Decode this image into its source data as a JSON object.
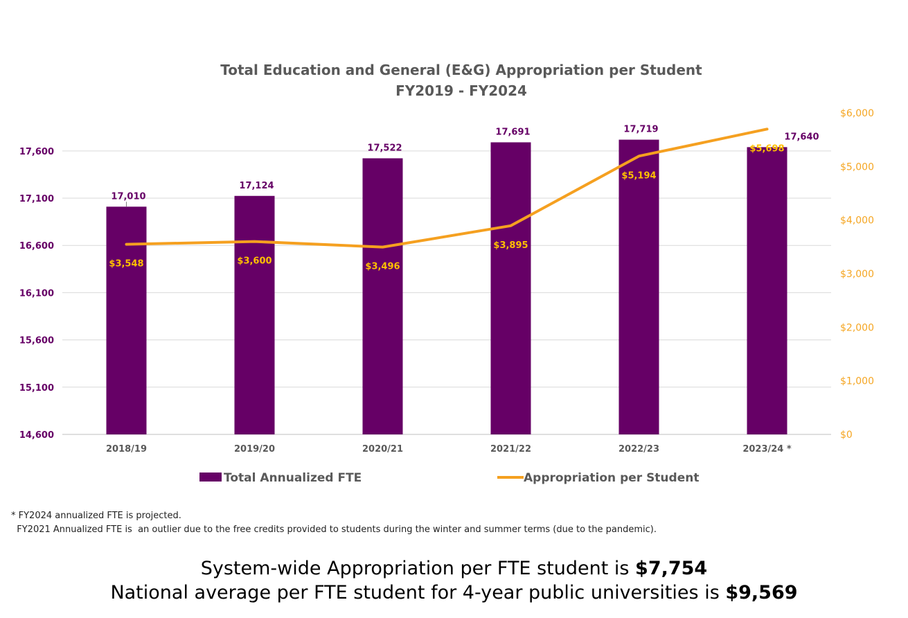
{
  "chart_data": {
    "type": "bar+line",
    "title": "Total Education and General (E&G) Appropriation per Student",
    "subtitle": "FY2019 - FY2024",
    "categories": [
      "2018/19",
      "2019/20",
      "2020/21",
      "2021/22",
      "2022/23",
      "2023/24 *"
    ],
    "series": [
      {
        "name": "Total Annualized FTE",
        "type": "bar",
        "axis": "left",
        "color": "#660066",
        "values": [
          17010,
          17124,
          17522,
          17691,
          17719,
          17640
        ],
        "labels": [
          "17,010",
          "17,124",
          "17,522",
          "17,691",
          "17,719",
          "17,640"
        ]
      },
      {
        "name": "Appropriation per Student",
        "type": "line",
        "axis": "right",
        "color": "#F5A020",
        "values": [
          3548,
          3600,
          3496,
          3895,
          5194,
          5698
        ],
        "labels": [
          "$3,548",
          "$3,600",
          "$3,496",
          "$3,895",
          "$5,194",
          "$5,698"
        ]
      }
    ],
    "y_left": {
      "range": [
        14600,
        18200
      ],
      "ticks": [
        14600,
        15100,
        15600,
        16100,
        16600,
        17100,
        17600
      ],
      "tick_labels": [
        "14,600",
        "15,100",
        "15,600",
        "16,100",
        "16,600",
        "17,100",
        "17,600"
      ]
    },
    "y_right": {
      "range": [
        0,
        6000
      ],
      "ticks": [
        0,
        1000,
        2000,
        3000,
        4000,
        5000,
        6000
      ],
      "tick_labels": [
        "$0",
        "$1,000",
        "$2,000",
        "$3,000",
        "$4,000",
        "$5,000",
        "$6,000"
      ]
    },
    "grid": true,
    "legend_position": "bottom"
  },
  "footnotes": {
    "line1": "* FY2024 annualized FTE is projected.",
    "line2": "  FY2021 Annualized FTE is  an outlier due to the free credits provided to students during the winter and summer terms (due to the pandemic)."
  },
  "summary": {
    "line1_text": "System-wide Appropriation per FTE student is ",
    "line1_value": "$7,754",
    "line2_text": "National average per FTE student for 4-year public universities is ",
    "line2_value": "$9,569"
  }
}
